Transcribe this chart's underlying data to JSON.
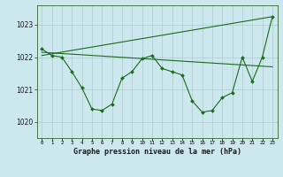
{
  "title": "Graphe pression niveau de la mer (hPa)",
  "background_color": "#cce8ee",
  "grid_color": "#aacccc",
  "line_color": "#1a6b1a",
  "xlim": [
    -0.5,
    23.5
  ],
  "ylim": [
    1019.5,
    1023.6
  ],
  "yticks": [
    1020,
    1021,
    1022,
    1023
  ],
  "xticks": [
    0,
    1,
    2,
    3,
    4,
    5,
    6,
    7,
    8,
    9,
    10,
    11,
    12,
    13,
    14,
    15,
    16,
    17,
    18,
    19,
    20,
    21,
    22,
    23
  ],
  "series1_x": [
    0,
    1,
    2,
    3,
    4,
    5,
    6,
    7,
    8,
    9,
    10,
    11,
    12,
    13,
    14,
    15,
    16,
    17,
    18,
    19,
    20,
    21,
    22,
    23
  ],
  "series1_y": [
    1022.25,
    1022.05,
    1022.0,
    1021.55,
    1021.05,
    1020.4,
    1020.35,
    1020.55,
    1021.35,
    1021.55,
    1021.95,
    1022.05,
    1021.65,
    1021.55,
    1021.45,
    1020.65,
    1020.3,
    1020.35,
    1020.75,
    1020.9,
    1022.0,
    1021.25,
    1022.0,
    1023.25
  ],
  "series2_x": [
    0,
    23
  ],
  "series2_y": [
    1022.15,
    1021.7
  ],
  "series3_x": [
    0,
    23
  ],
  "series3_y": [
    1022.05,
    1023.25
  ]
}
